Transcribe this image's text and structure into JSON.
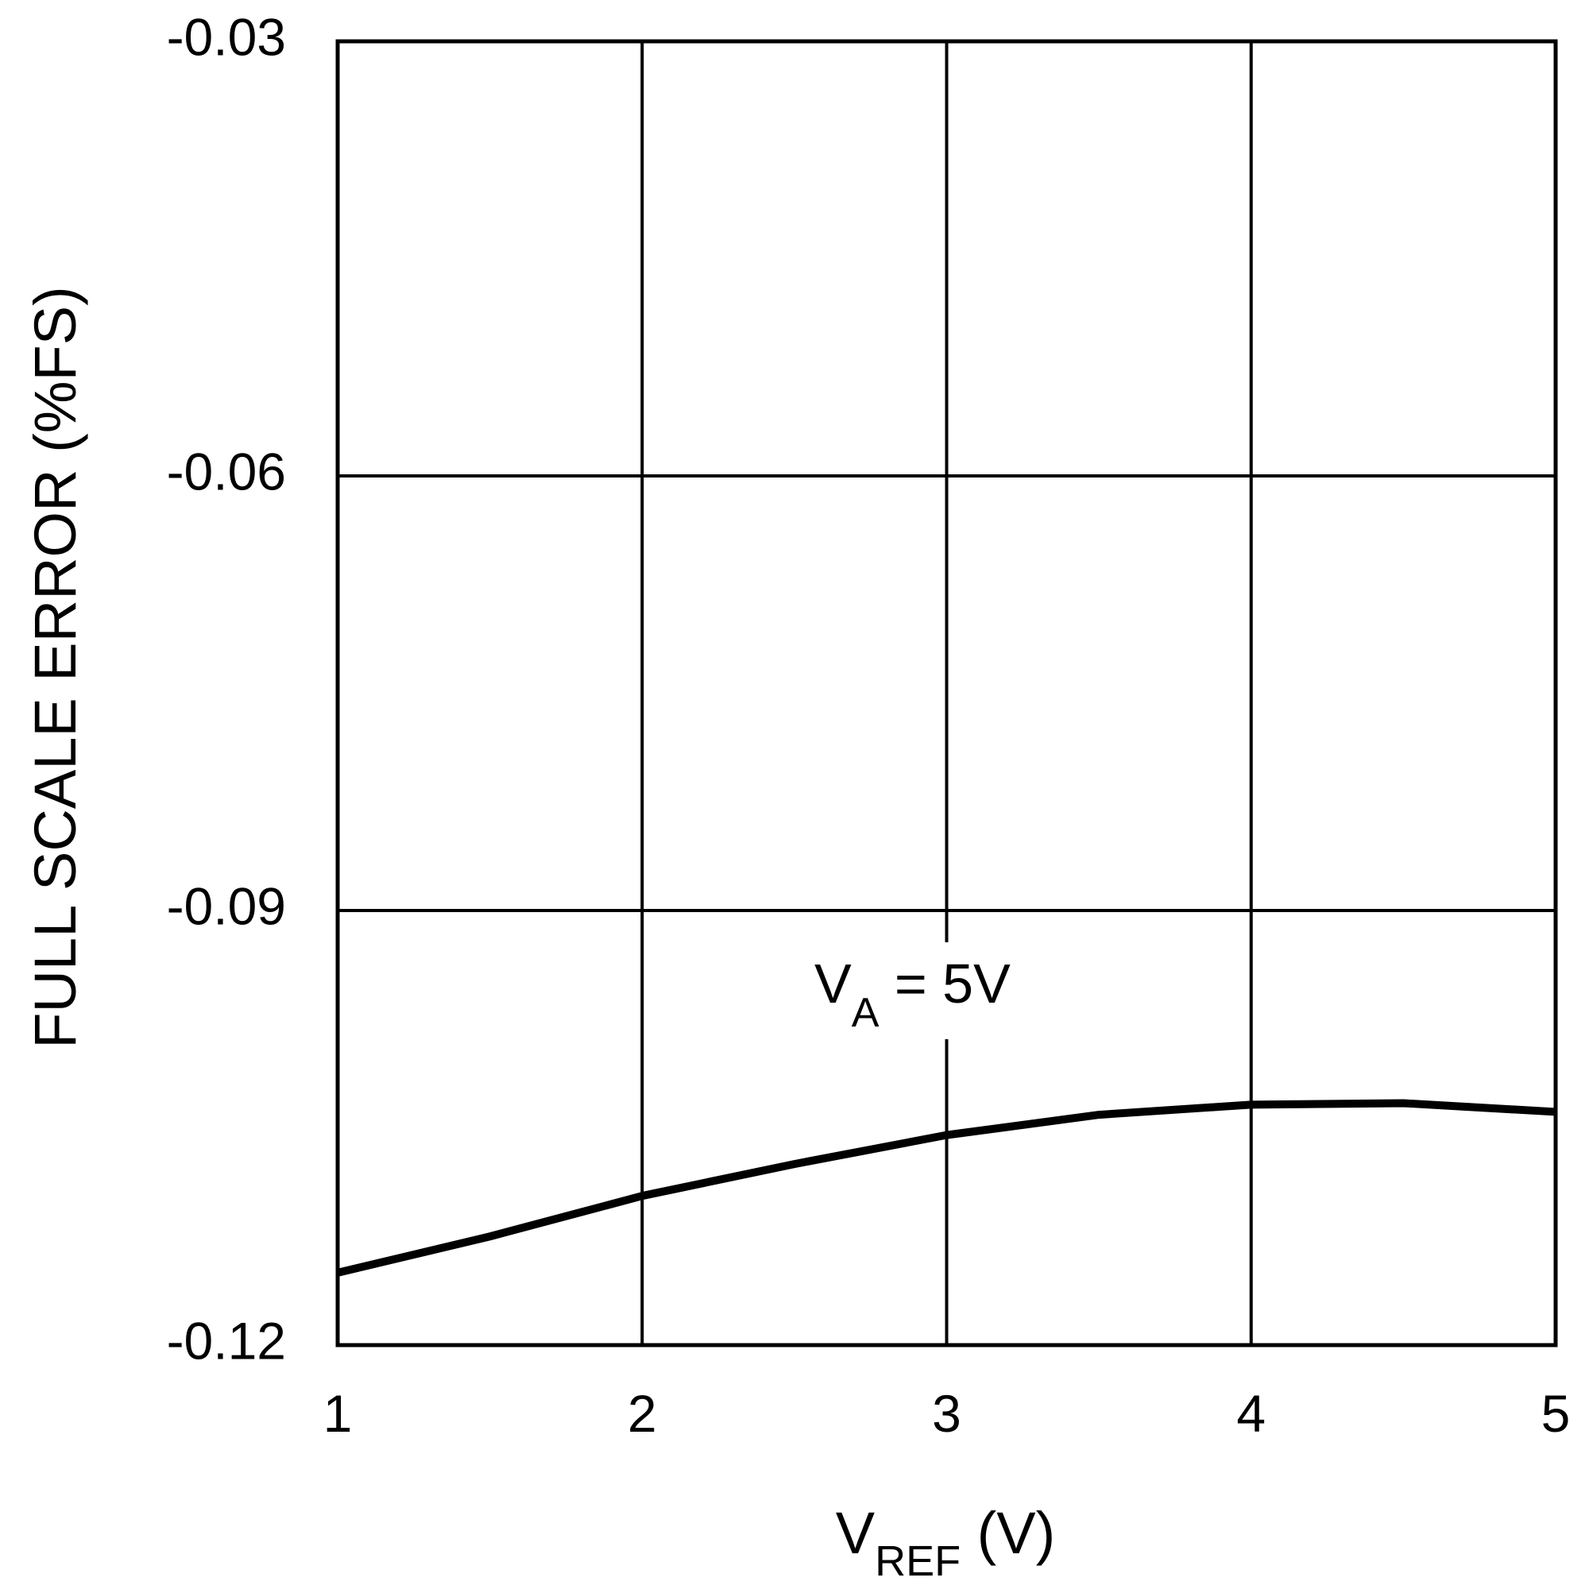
{
  "chart_data": {
    "type": "line",
    "x_label": [
      "V",
      "REF",
      " (V)"
    ],
    "y_label": "FULL SCALE ERROR (%FS)",
    "annotation": [
      "V",
      "A",
      " = 5V"
    ],
    "x": [
      1,
      1.5,
      2,
      2.5,
      3,
      3.5,
      4,
      4.5,
      5
    ],
    "series": [
      {
        "color": "#000000",
        "values": [
          -0.115,
          -0.1125,
          -0.1097,
          -0.1075,
          -0.1055,
          -0.1041,
          -0.1034,
          -0.1033,
          -0.1039
        ]
      }
    ],
    "xlim": [
      1,
      5
    ],
    "ylim": [
      -0.12,
      -0.03
    ],
    "xticks": [
      1,
      2,
      3,
      4,
      5
    ],
    "yticks": [
      -0.12,
      -0.09,
      -0.06,
      -0.03
    ],
    "grid": true
  }
}
